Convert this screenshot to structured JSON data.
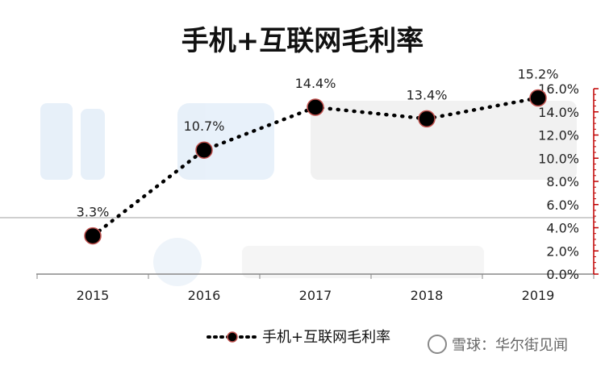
{
  "chart_data": {
    "type": "line",
    "title": "手机+互联网毛利率",
    "categories": [
      "2015",
      "2016",
      "2017",
      "2018",
      "2019"
    ],
    "series": [
      {
        "name": "手机+互联网毛利率",
        "values": [
          3.3,
          10.7,
          14.4,
          13.4,
          15.2
        ],
        "labels": [
          "3.3%",
          "10.7%",
          "14.4%",
          "13.4%",
          "15.2%"
        ],
        "color": "#000000",
        "marker_edge_color": "#c0504d"
      }
    ],
    "y_axis": {
      "position": "right",
      "ylim": [
        0,
        16
      ],
      "ticks": [
        0,
        2,
        4,
        6,
        8,
        10,
        12,
        14,
        16
      ],
      "tick_labels": [
        "0.0%",
        "2.0%",
        "4.0%",
        "6.0%",
        "8.0%",
        "10.0%",
        "12.0%",
        "14.0%",
        "16.0%"
      ],
      "axis_color": "#c00000"
    },
    "grid": false,
    "legend": "bottom-center",
    "line_style": "dotted"
  },
  "watermark": {
    "text": "雪球：华尔街见闻",
    "icon": "snowball-icon"
  }
}
